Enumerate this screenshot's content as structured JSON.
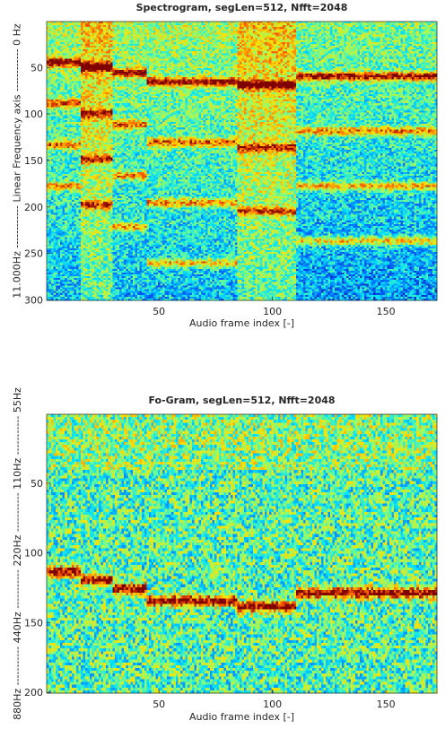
{
  "colors": {
    "low": "#00007f",
    "blue": "#0060ff",
    "cyan": "#00e0ff",
    "green": "#7fff7f",
    "yellow": "#ffe000",
    "orange": "#ff6000",
    "high": "#7f0000"
  },
  "chart_data": [
    {
      "type": "heatmap",
      "title": "Spectrogram,  segLen=512,  Nfft=2048",
      "xlabel": "Audio frame index [-]",
      "ylabel": "11.000Hz ------------ Linear Frequency axis ------------ 0 Hz",
      "xlim": [
        1,
        172
      ],
      "ylim": [
        1,
        300
      ],
      "x_ticks": [
        50,
        100,
        150
      ],
      "y_ticks": [
        50,
        100,
        150,
        200,
        250,
        300
      ],
      "colormap": "jet",
      "segments": [
        {
          "x_start": 1,
          "x_end": 15,
          "lines": [
            44,
            88,
            133,
            177
          ]
        },
        {
          "x_start": 16,
          "x_end": 29,
          "lines": [
            49,
            99,
            148,
            197
          ]
        },
        {
          "x_start": 30,
          "x_end": 44,
          "lines": [
            55,
            111,
            166,
            221
          ]
        },
        {
          "x_start": 45,
          "x_end": 84,
          "lines": [
            65,
            130,
            195,
            260
          ]
        },
        {
          "x_start": 85,
          "x_end": 110,
          "lines": [
            68,
            136,
            204
          ]
        },
        {
          "x_start": 111,
          "x_end": 172,
          "lines": [
            59,
            118,
            177,
            236
          ]
        }
      ]
    },
    {
      "type": "heatmap",
      "title": "Fo-Gram,  segLen=512,  Nfft=2048",
      "xlabel": "Audio frame index [-]",
      "ylabel": "880Hz ----------- 440Hz ----------- 220Hz ----------- 110Hz ----------- 55Hz",
      "xlim": [
        1,
        172
      ],
      "ylim": [
        1,
        200
      ],
      "x_ticks": [
        50,
        100,
        150
      ],
      "y_ticks": [
        50,
        100,
        150,
        200
      ],
      "colormap": "jet",
      "segments": [
        {
          "x_start": 1,
          "x_end": 15,
          "line": 113
        },
        {
          "x_start": 16,
          "x_end": 29,
          "line": 119
        },
        {
          "x_start": 30,
          "x_end": 44,
          "line": 125
        },
        {
          "x_start": 45,
          "x_end": 84,
          "line": 134
        },
        {
          "x_start": 85,
          "x_end": 110,
          "line": 138
        },
        {
          "x_start": 111,
          "x_end": 172,
          "line": 128
        }
      ]
    }
  ]
}
